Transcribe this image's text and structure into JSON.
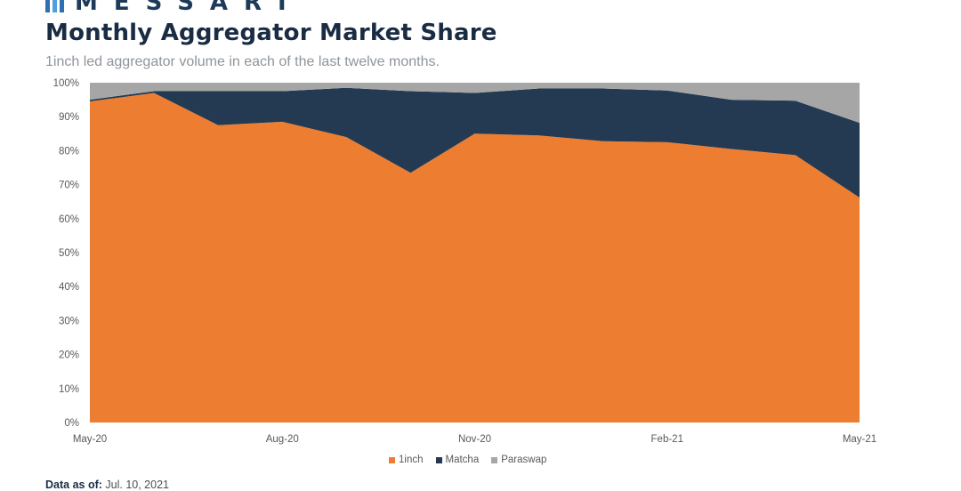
{
  "brand": {
    "name": "MESSARI",
    "logo_icon": "messari-logo-icon",
    "color": "#1e3a5a"
  },
  "header": {
    "title": "Monthly Aggregator Market Share",
    "subtitle": "1inch led aggregator volume in each of the last twelve months."
  },
  "footer": {
    "label": "Data as of:",
    "value": "Jul. 10, 2021"
  },
  "chart_data": {
    "type": "area",
    "stacked": true,
    "title": "Monthly Aggregator Market Share",
    "subtitle": "1inch led aggregator volume in each of the last twelve months.",
    "x": [
      "May-20",
      "Jun-20",
      "Jul-20",
      "Aug-20",
      "Sep-20",
      "Oct-20",
      "Nov-20",
      "Dec-20",
      "Jan-21",
      "Feb-21",
      "Mar-21",
      "Apr-21",
      "May-21"
    ],
    "x_tick_labels": [
      "May-20",
      "Aug-20",
      "Nov-20",
      "Feb-21",
      "May-21"
    ],
    "y_tick_labels": [
      "0%",
      "10%",
      "20%",
      "30%",
      "40%",
      "50%",
      "60%",
      "70%",
      "80%",
      "90%",
      "100%"
    ],
    "ylim": [
      0,
      100
    ],
    "grid": false,
    "legend_position": "bottom",
    "series": [
      {
        "name": "1inch",
        "color": "#ed7d31",
        "values": [
          94.5,
          97,
          87.5,
          88.5,
          84,
          73.5,
          85,
          84.5,
          82.8,
          82.5,
          80.5,
          78.7,
          66.2
        ]
      },
      {
        "name": "Matcha",
        "color": "#243a52",
        "values": [
          0.5,
          0.5,
          10,
          9,
          14.5,
          24,
          12,
          13.8,
          15.5,
          15.2,
          14.5,
          16,
          22
        ]
      },
      {
        "name": "Paraswap",
        "color": "#a6a6a6",
        "values": [
          5,
          2.5,
          2.5,
          2.5,
          1.5,
          2.5,
          3,
          1.7,
          1.7,
          2.3,
          5,
          5.3,
          11.8
        ]
      }
    ]
  }
}
